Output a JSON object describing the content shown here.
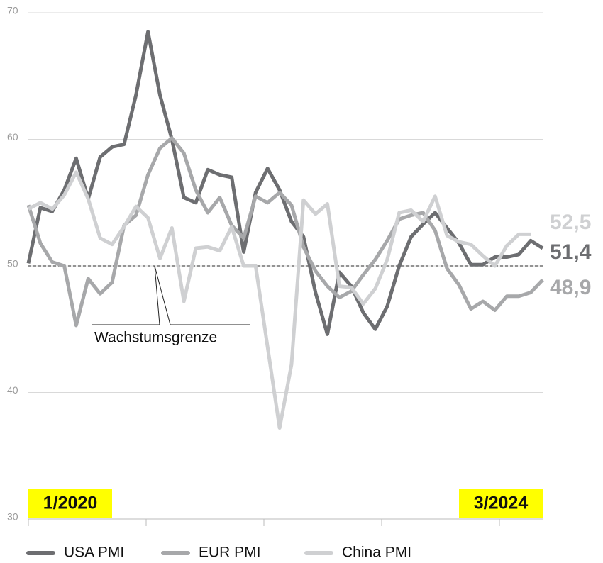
{
  "chart_data": {
    "type": "line",
    "categories": [
      "1/2020",
      null,
      null,
      null,
      null,
      null,
      null,
      null,
      null,
      null,
      null,
      null,
      null,
      null,
      null,
      null,
      null,
      null,
      null,
      null,
      null,
      null,
      null,
      null,
      null,
      null,
      null,
      null,
      null,
      null,
      null,
      null,
      null,
      null,
      null,
      null,
      null,
      null,
      null,
      null,
      null,
      null,
      null,
      "3/2024"
    ],
    "series": [
      {
        "name": "USA PMI",
        "color": "#6d6e71",
        "values": [
          50.2,
          54.6,
          54.3,
          56,
          58.5,
          55.3,
          58.6,
          59.4,
          59.6,
          63.5,
          68.5,
          63.5,
          60,
          55.4,
          55,
          57.6,
          57.2,
          57,
          51.1,
          55.8,
          57.7,
          56,
          53.5,
          52.3,
          47.9,
          44.6,
          49.5,
          48.4,
          46.3,
          45,
          46.8,
          50,
          52.3,
          53.3,
          54.2,
          53,
          51.8,
          50.1,
          50.1,
          50.7,
          50.7,
          50.9,
          52,
          51.4
        ],
        "value_labels": [
          null,
          null,
          null,
          null,
          null,
          null,
          null,
          null,
          null,
          null,
          null,
          null,
          null,
          null,
          null,
          null,
          null,
          null,
          null,
          null,
          null,
          null,
          null,
          null,
          null,
          null,
          null,
          null,
          null,
          null,
          null,
          null,
          null,
          null,
          null,
          null,
          null,
          null,
          null,
          null,
          null,
          null,
          null,
          "51,4"
        ]
      },
      {
        "name": "EUR PMI",
        "color": "#a7a8aa",
        "values": [
          54.8,
          51.8,
          50.3,
          50,
          45.3,
          49,
          47.8,
          48.7,
          53.2,
          54,
          57.2,
          59.3,
          60.1,
          58.9,
          56,
          54.2,
          55.4,
          53.2,
          52.2,
          55.5,
          55,
          55.8,
          54.8,
          51.5,
          49.6,
          48.4,
          47.5,
          48,
          49.3,
          50.5,
          52,
          53.7,
          54,
          54.2,
          52.8,
          49.8,
          48.5,
          46.6,
          47.2,
          46.5,
          47.6,
          47.6,
          47.9,
          48.9
        ],
        "value_labels": [
          null,
          null,
          null,
          null,
          null,
          null,
          null,
          null,
          null,
          null,
          null,
          null,
          null,
          null,
          null,
          null,
          null,
          null,
          null,
          null,
          null,
          null,
          null,
          null,
          null,
          null,
          null,
          null,
          null,
          null,
          null,
          null,
          null,
          null,
          null,
          null,
          null,
          null,
          null,
          null,
          null,
          null,
          null,
          "48,9"
        ]
      },
      {
        "name": "China PMI",
        "color": "#cfd0d2",
        "values": [
          54.5,
          55,
          54.5,
          55.6,
          57.4,
          55.3,
          52.2,
          51.7,
          53.1,
          54.7,
          53.8,
          50.6,
          53,
          47.2,
          51.4,
          51.5,
          51.2,
          53.1,
          50,
          50,
          43.6,
          37.2,
          42.2,
          55.2,
          54.1,
          54.9,
          48.4,
          48.3,
          47,
          48.2,
          50.5,
          54.2,
          54.4,
          53.5,
          55.5,
          52.4,
          51.9,
          51.7,
          50.8,
          50,
          51.6,
          52.5,
          52.5,
          null
        ],
        "value_labels": [
          null,
          null,
          null,
          null,
          null,
          null,
          null,
          null,
          null,
          null,
          null,
          null,
          null,
          null,
          null,
          null,
          null,
          null,
          null,
          null,
          null,
          null,
          null,
          null,
          null,
          null,
          null,
          null,
          null,
          null,
          null,
          null,
          null,
          null,
          null,
          null,
          null,
          null,
          null,
          null,
          null,
          null,
          "52,5",
          null
        ]
      }
    ],
    "ylim": [
      30,
      70
    ],
    "yticks": [
      30,
      40,
      50,
      60,
      70
    ],
    "grid": true,
    "reference_line": {
      "value": 50,
      "label": "Wachstumsgrenze"
    },
    "legend": "bottom"
  }
}
